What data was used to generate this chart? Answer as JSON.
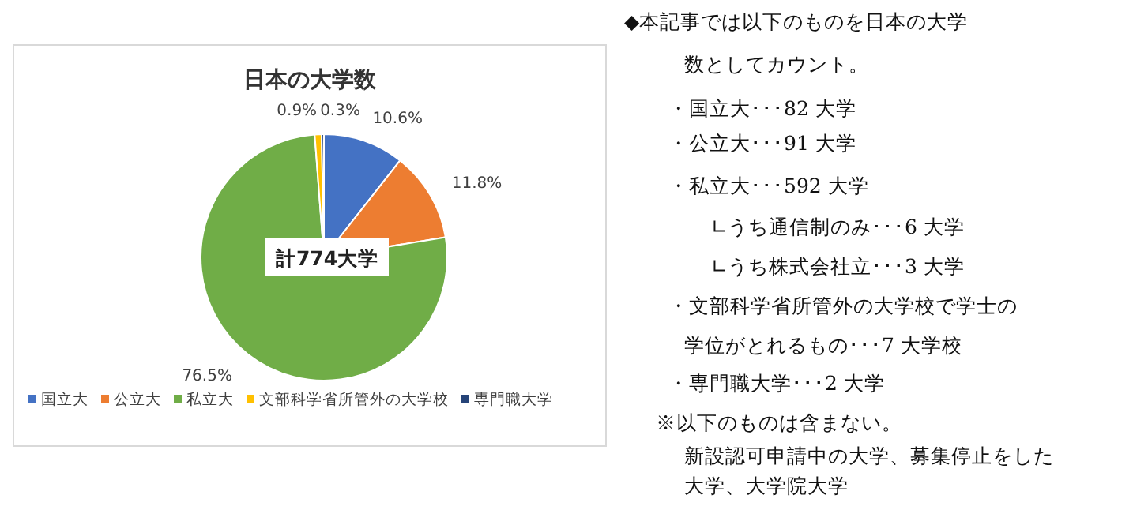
{
  "chart_data": [
    {
      "type": "pie",
      "title": "日本の大学数",
      "categories": [
        "国立大",
        "公立大",
        "私立大",
        "文部科学省所管外の大学校",
        "専門職大学"
      ],
      "values": [
        10.6,
        11.8,
        76.5,
        0.9,
        0.3
      ],
      "colors": [
        "#4472c4",
        "#ed7d31",
        "#70ad47",
        "#ffc000",
        "#264478"
      ],
      "value_labels": [
        "10.6%",
        "11.8%",
        "76.5%",
        "0.9%",
        "0.3%"
      ],
      "annotations": [
        "計774大学"
      ],
      "legend": "bottom"
    },
    {
      "type": "other",
      "annotations": [
        "◆本記事では以下のものを日本の大学",
        "数としてカウント。",
        "・国立大･･･82 大学",
        "・公立大･･･91 大学",
        "・私立大･･･592 大学",
        "∟うち通信制のみ･･･6 大学",
        "∟うち株式会社立･･･3 大学",
        "・文部科学省所管外の大学校で学士の",
        "学位がとれるもの･･･7 大学校",
        "・専門職大学･･･2 大学",
        "※以下のものは含まない。",
        "新設認可申請中の大学、募集停止をした",
        "大学、大学院大学"
      ]
    }
  ]
}
